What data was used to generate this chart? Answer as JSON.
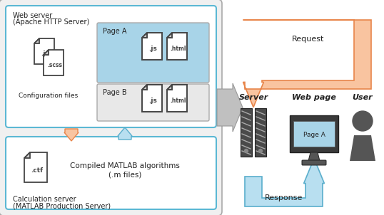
{
  "bg_color": "#ffffff",
  "outer_box_edge": "#aaaaaa",
  "outer_box_face": "#f0f0f0",
  "web_box_edge": "#5bb8d4",
  "calc_box_edge": "#5bb8d4",
  "page_a_face": "#a8d4e8",
  "page_b_face": "#e8e8e8",
  "file_border": "#444444",
  "file_face": "#ffffff",
  "file_corner": "#cccccc",
  "orange_fill": "#f9c4a0",
  "orange_edge": "#e8854a",
  "blue_fill": "#b8dff0",
  "blue_edge": "#5aaecc",
  "gray_arrow_fill": "#c0c0c0",
  "gray_arrow_edge": "#999999",
  "server_dark": "#4a4a4a",
  "server_stripe": "#888888",
  "monitor_dark": "#3a3a3a",
  "monitor_screen": "#a8d4e8",
  "user_color": "#555555",
  "text_dark": "#222222",
  "web_server_line1": "Web server",
  "web_server_line2": "(Apache HTTP Server)",
  "calc_server_line1": "Calculation server",
  "calc_server_line2": "(MATLAB Production Server)",
  "config_label": "Configuration files",
  "compiled_line1": "Compiled MATLAB algorithms",
  "compiled_line2": "(.m files)",
  "page_a_label": "Page A",
  "page_b_label": "Page B",
  "server_label": "Server",
  "webpage_label": "Web page",
  "user_label": "User",
  "request_label": "Request",
  "response_label": "Response"
}
